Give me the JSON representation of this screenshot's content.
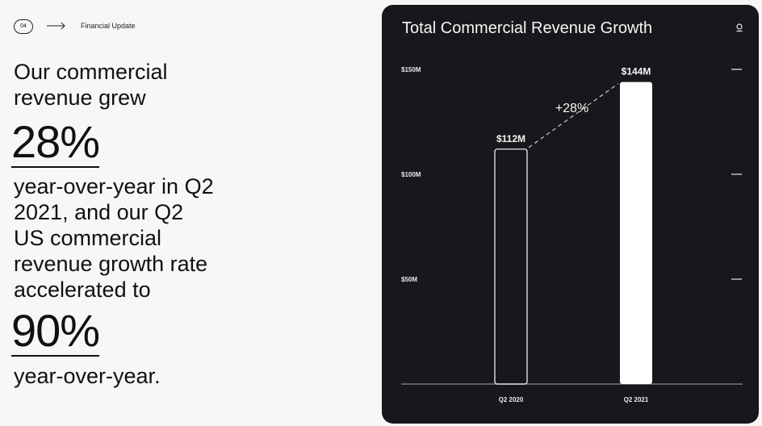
{
  "header": {
    "badge": "04",
    "section_title": "Financial Update"
  },
  "text": {
    "p1": "Our commercial revenue grew",
    "big1": "28%",
    "p2": "year-over-year in Q2 2021, and our Q2 US commercial revenue growth rate accelerated to",
    "big2": "90%",
    "p3": "year-over-year."
  },
  "icons": [
    "arrow-right-icon",
    "info-icon"
  ],
  "colors": {
    "card_bg": "#19171b",
    "bar_fill": "#ffffff"
  },
  "chart_data": {
    "type": "bar",
    "title": "Total Commercial Revenue Growth",
    "categories": [
      "Q2 2020",
      "Q2 2021"
    ],
    "values": [
      112,
      144
    ],
    "data_labels": [
      "$112M",
      "$144M"
    ],
    "y_ticks": [
      50,
      100,
      150
    ],
    "y_tick_labels": [
      "$50M",
      "$100M",
      "$150M"
    ],
    "ylim": [
      0,
      150
    ],
    "annotation": "+28%",
    "grid": false
  }
}
